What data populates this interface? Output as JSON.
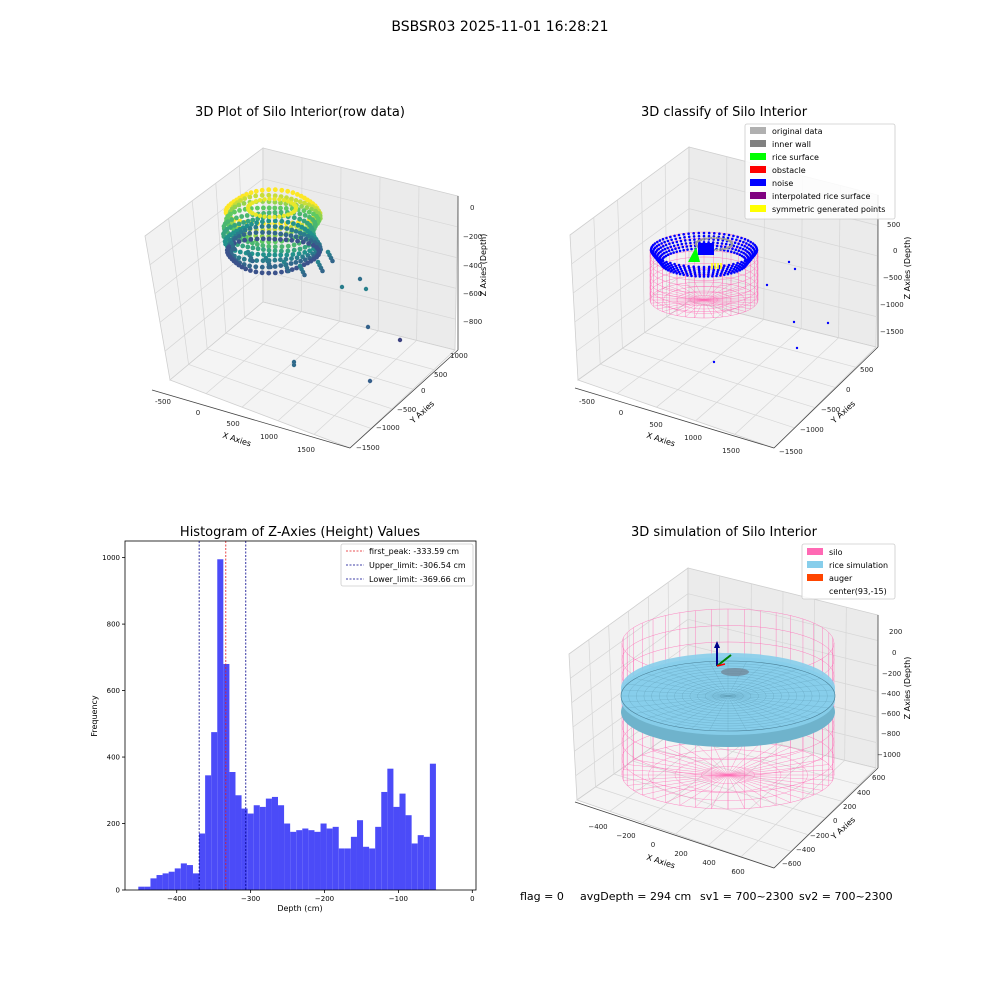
{
  "suptitle": "BSBSR03 2025-11-01 16:28:21",
  "footer": {
    "flag": "flag = 0",
    "avg_depth": "avgDepth = 294 cm",
    "sv1": "sv1 = 700~2300",
    "sv2": "sv2 = 700~2300"
  },
  "colors": {
    "hist_bar": "#4b4bf8",
    "first_peak": "#e31a1c",
    "limits": "#00008b",
    "silo": "#ff69b4",
    "rice": "#87ceeb",
    "auger": "#ff4500",
    "rice_surface": "#00ff00",
    "noise": "#0000ff"
  },
  "chart_data": [
    {
      "type": "scatter3d",
      "title": "3D Plot of Silo Interior(row data)",
      "xlabel": "X Axies",
      "ylabel": "Y Axies",
      "zlabel": "Z Axies (Depth)",
      "x_ticks": [
        "-500",
        "0",
        "500",
        "1000",
        "1500"
      ],
      "y_ticks": [
        "1000",
        "500",
        "0",
        "−500",
        "−1000",
        "−1500"
      ],
      "z_ticks": [
        "0",
        "−200",
        "−400",
        "−600",
        "−800"
      ],
      "outlier_points": [
        {
          "x": 1000,
          "y": -300,
          "z": -600
        },
        {
          "x": 1100,
          "y": -200,
          "z": -550
        },
        {
          "x": 1200,
          "y": 0,
          "z": -800
        },
        {
          "x": 1400,
          "y": 0,
          "z": -950
        },
        {
          "x": 600,
          "y": -900,
          "z": -850
        },
        {
          "x": 1500,
          "y": -800,
          "z": -1000
        }
      ]
    },
    {
      "type": "scatter3d",
      "title": "3D classify of Silo Interior",
      "xlabel": "X Axies",
      "ylabel": "Y Axies",
      "zlabel": "Z Axies (Depth)",
      "x_ticks": [
        "-500",
        "0",
        "500",
        "1000",
        "1500"
      ],
      "y_ticks": [
        "500",
        "0",
        "−500",
        "−1000",
        "−1500"
      ],
      "z_ticks": [
        "500",
        "0",
        "−500",
        "−1000",
        "−1500"
      ],
      "legend": [
        {
          "label": "original data",
          "color": "#b0b0b0"
        },
        {
          "label": "inner wall",
          "color": "#808080"
        },
        {
          "label": "rice surface",
          "color": "#00ff00"
        },
        {
          "label": "obstacle",
          "color": "#ff0000"
        },
        {
          "label": "noise",
          "color": "#0000ff"
        },
        {
          "label": "interpolated rice surface",
          "color": "#800080"
        },
        {
          "label": "symmetric generated points",
          "color": "#ffff00"
        }
      ]
    },
    {
      "type": "bar",
      "title": "Histogram of Z-Axies (Height) Values",
      "xlabel": "Depth (cm)",
      "ylabel": "Frequency",
      "xlim": [
        -470,
        5
      ],
      "ylim": [
        0,
        1050
      ],
      "x_ticks": [
        -400,
        -300,
        -200,
        -100,
        0
      ],
      "x_tick_labels": [
        "−400",
        "−300",
        "−200",
        "−100",
        "0"
      ],
      "y_ticks": [
        0,
        200,
        400,
        600,
        800,
        1000
      ],
      "y_tick_labels": [
        "0",
        "200",
        "400",
        "600",
        "800",
        "1000"
      ],
      "bin_start": -452,
      "bin_width": 8.22,
      "values": [
        10,
        10,
        35,
        45,
        50,
        55,
        65,
        80,
        75,
        50,
        170,
        345,
        475,
        995,
        680,
        355,
        285,
        245,
        230,
        255,
        250,
        275,
        280,
        255,
        200,
        175,
        180,
        185,
        180,
        175,
        200,
        185,
        190,
        125,
        125,
        160,
        210,
        130,
        125,
        190,
        295,
        365,
        250,
        290,
        225,
        140,
        165,
        160,
        380
      ],
      "vlines": [
        {
          "key": "first_peak",
          "x": -333.59,
          "label": "first_peak: -333.59 cm",
          "color": "#e31a1c"
        },
        {
          "key": "upper",
          "x": -306.54,
          "label": "Upper_limit: -306.54 cm",
          "color": "#00008b"
        },
        {
          "key": "lower",
          "x": -369.66,
          "label": "Lower_limit: -369.66 cm",
          "color": "#00008b"
        }
      ],
      "legend_position": "upper right"
    },
    {
      "type": "surface3d",
      "title": "3D simulation of Silo Interior",
      "xlabel": "X Axies",
      "ylabel": "Y Axies",
      "zlabel": "Z Axies (Depth)",
      "x_ticks": [
        "−400",
        "−200",
        "0",
        "200",
        "400",
        "600"
      ],
      "y_ticks": [
        "600",
        "400",
        "200",
        "0",
        "−200",
        "−400",
        "−600"
      ],
      "z_ticks": [
        "200",
        "0",
        "−200",
        "−400",
        "−600",
        "−800",
        "−1000"
      ],
      "legend": [
        {
          "label": "silo",
          "color": "#ff69b4"
        },
        {
          "label": "rice simulation",
          "color": "#87ceeb"
        },
        {
          "label": "auger",
          "color": "#ff4500"
        },
        {
          "label": "center(93,-15)",
          "color": "#ffffff"
        }
      ]
    }
  ]
}
